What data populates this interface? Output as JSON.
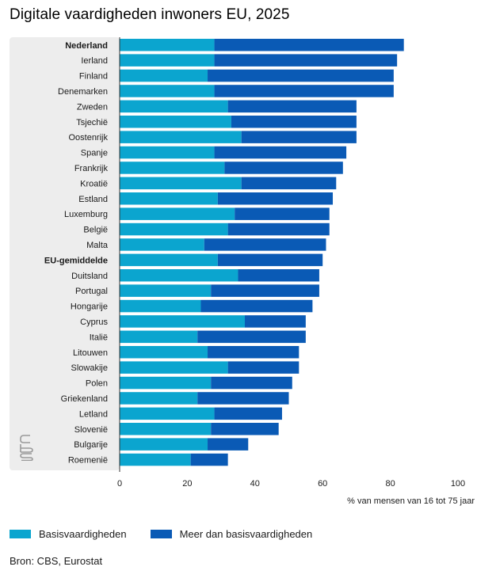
{
  "title": "Digitale vaardigheden inwoners EU, 2025",
  "source": "Bron: CBS, Eurostat",
  "colors": {
    "basis": "#0ba5cf",
    "meer": "#0a5ab5",
    "panel": "#ededed"
  },
  "chart_data": {
    "type": "bar",
    "orientation": "horizontal",
    "stacked": true,
    "title": "Digitale vaardigheden inwoners EU, 2025",
    "xlabel": "% van mensen van 16 tot 75 jaar",
    "xlim": [
      0,
      100
    ],
    "xticks": [
      "0",
      "20",
      "40",
      "60",
      "80",
      "100"
    ],
    "legend_position": "bottom-left",
    "highlighted": [
      "Nederland",
      "EU-gemiddelde"
    ],
    "categories": [
      "Nederland",
      "Ierland",
      "Finland",
      "Denemarken",
      "Zweden",
      "Tsjechië",
      "Oostenrijk",
      "Spanje",
      "Frankrijk",
      "Kroatië",
      "Estland",
      "Luxemburg",
      "België",
      "Malta",
      "EU-gemiddelde",
      "Duitsland",
      "Portugal",
      "Hongarije",
      "Cyprus",
      "Italië",
      "Litouwen",
      "Slowakije",
      "Polen",
      "Griekenland",
      "Letland",
      "Slovenië",
      "Bulgarije",
      "Roemenië"
    ],
    "series": [
      {
        "name": "Basisvaardigheden",
        "values": [
          28,
          28,
          26,
          28,
          32,
          33,
          36,
          28,
          31,
          36,
          29,
          34,
          32,
          25,
          29,
          35,
          27,
          24,
          37,
          23,
          26,
          32,
          27,
          23,
          28,
          27,
          26,
          21
        ]
      },
      {
        "name": "Meer dan basisvaardigheden",
        "values": [
          56,
          54,
          55,
          53,
          38,
          37,
          34,
          39,
          35,
          28,
          34,
          28,
          30,
          36,
          31,
          24,
          32,
          33,
          18,
          32,
          27,
          21,
          24,
          27,
          20,
          20,
          12,
          11
        ]
      }
    ]
  }
}
